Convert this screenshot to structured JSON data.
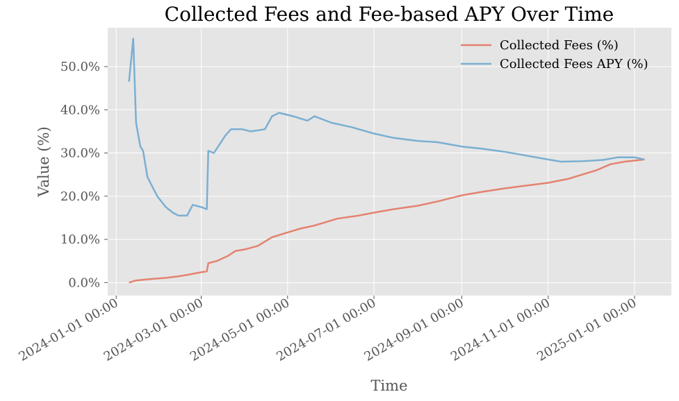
{
  "chart_data": {
    "type": "line",
    "title": "Collected Fees and Fee-based APY Over Time",
    "xlabel": "Time",
    "ylabel": "Value (%)",
    "xlim": [
      "2023-12-26",
      "2025-01-27"
    ],
    "ylim": [
      -3,
      59
    ],
    "x_ticks": [
      "2024-01-01 00:00",
      "2024-03-01 00:00",
      "2024-05-01 00:00",
      "2024-07-01 00:00",
      "2024-09-01 00:00",
      "2024-11-01 00:00",
      "2025-01-01 00:00"
    ],
    "y_ticks": [
      {
        "value": 0,
        "label": "0.0%"
      },
      {
        "value": 10,
        "label": "10.0%"
      },
      {
        "value": 20,
        "label": "20.0%"
      },
      {
        "value": 30,
        "label": "30.0%"
      },
      {
        "value": 40,
        "label": "40.0%"
      },
      {
        "value": 50,
        "label": "50.0%"
      }
    ],
    "grid": true,
    "legend_position": "top-right",
    "background": "#e5e5e5",
    "series": [
      {
        "name": "Collected Fees (%)",
        "color": "#e4826f",
        "points": [
          [
            "2024-01-10",
            0.0
          ],
          [
            "2024-01-15",
            0.5
          ],
          [
            "2024-01-25",
            0.8
          ],
          [
            "2024-02-05",
            1.1
          ],
          [
            "2024-02-15",
            1.5
          ],
          [
            "2024-02-22",
            1.9
          ],
          [
            "2024-03-01",
            2.4
          ],
          [
            "2024-03-05",
            2.6
          ],
          [
            "2024-03-06",
            4.5
          ],
          [
            "2024-03-12",
            5.0
          ],
          [
            "2024-03-20",
            6.2
          ],
          [
            "2024-03-25",
            7.3
          ],
          [
            "2024-04-01",
            7.7
          ],
          [
            "2024-04-10",
            8.5
          ],
          [
            "2024-04-20",
            10.5
          ],
          [
            "2024-04-30",
            11.5
          ],
          [
            "2024-05-10",
            12.5
          ],
          [
            "2024-05-20",
            13.2
          ],
          [
            "2024-05-28",
            14.0
          ],
          [
            "2024-06-05",
            14.8
          ],
          [
            "2024-06-20",
            15.5
          ],
          [
            "2024-07-01",
            16.2
          ],
          [
            "2024-07-15",
            17.0
          ],
          [
            "2024-08-01",
            17.8
          ],
          [
            "2024-08-15",
            18.8
          ],
          [
            "2024-09-01",
            20.2
          ],
          [
            "2024-09-15",
            21.0
          ],
          [
            "2024-10-01",
            21.8
          ],
          [
            "2024-10-15",
            22.4
          ],
          [
            "2024-11-01",
            23.1
          ],
          [
            "2024-11-15",
            24.0
          ],
          [
            "2024-11-25",
            25.0
          ],
          [
            "2024-12-05",
            26.0
          ],
          [
            "2024-12-15",
            27.4
          ],
          [
            "2024-12-25",
            28.0
          ],
          [
            "2025-01-08",
            28.5
          ]
        ]
      },
      {
        "name": "Collected Fees APY (%)",
        "color": "#7aafd2",
        "points": [
          [
            "2024-01-10",
            46.5
          ],
          [
            "2024-01-13",
            56.5
          ],
          [
            "2024-01-15",
            37.0
          ],
          [
            "2024-01-18",
            31.5
          ],
          [
            "2024-01-20",
            30.5
          ],
          [
            "2024-01-23",
            24.5
          ],
          [
            "2024-01-26",
            22.5
          ],
          [
            "2024-01-30",
            20.0
          ],
          [
            "2024-02-05",
            17.5
          ],
          [
            "2024-02-10",
            16.2
          ],
          [
            "2024-02-14",
            15.5
          ],
          [
            "2024-02-20",
            15.5
          ],
          [
            "2024-02-24",
            18.0
          ],
          [
            "2024-03-01",
            17.5
          ],
          [
            "2024-03-05",
            17.0
          ],
          [
            "2024-03-06",
            30.5
          ],
          [
            "2024-03-10",
            30.0
          ],
          [
            "2024-03-18",
            34.0
          ],
          [
            "2024-03-22",
            35.5
          ],
          [
            "2024-03-30",
            35.5
          ],
          [
            "2024-04-05",
            35.0
          ],
          [
            "2024-04-15",
            35.5
          ],
          [
            "2024-04-20",
            38.5
          ],
          [
            "2024-04-25",
            39.3
          ],
          [
            "2024-05-05",
            38.5
          ],
          [
            "2024-05-15",
            37.5
          ],
          [
            "2024-05-20",
            38.5
          ],
          [
            "2024-06-01",
            37.0
          ],
          [
            "2024-06-15",
            36.0
          ],
          [
            "2024-07-01",
            34.5
          ],
          [
            "2024-07-15",
            33.5
          ],
          [
            "2024-08-01",
            32.8
          ],
          [
            "2024-08-15",
            32.5
          ],
          [
            "2024-09-01",
            31.5
          ],
          [
            "2024-09-15",
            31.0
          ],
          [
            "2024-10-01",
            30.3
          ],
          [
            "2024-10-15",
            29.5
          ],
          [
            "2024-11-01",
            28.5
          ],
          [
            "2024-11-10",
            28.0
          ],
          [
            "2024-11-25",
            28.1
          ],
          [
            "2024-12-10",
            28.4
          ],
          [
            "2024-12-20",
            29.0
          ],
          [
            "2025-01-01",
            29.0
          ],
          [
            "2025-01-08",
            28.5
          ]
        ]
      }
    ]
  }
}
